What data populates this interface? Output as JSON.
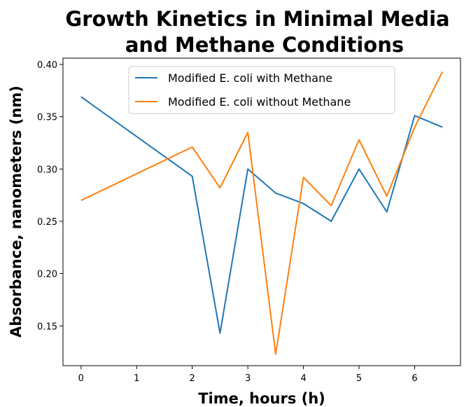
{
  "chart_data": {
    "type": "line",
    "title_lines": [
      "Growth Kinetics in Minimal Media",
      "and Methane Conditions"
    ],
    "xlabel": "Time, hours (h)",
    "ylabel": "Absorbance, nanometers (nm)",
    "xlim": [
      -0.325,
      6.825
    ],
    "ylim": [
      0.112,
      0.406
    ],
    "xticks": [
      0,
      1,
      2,
      3,
      4,
      5,
      6
    ],
    "xtick_labels": [
      "0",
      "1",
      "2",
      "3",
      "4",
      "5",
      "6"
    ],
    "yticks": [
      0.15,
      0.2,
      0.25,
      0.3,
      0.35,
      0.4
    ],
    "ytick_labels": [
      "0.15",
      "0.20",
      "0.25",
      "0.30",
      "0.35",
      "0.40"
    ],
    "grid": false,
    "legend_position": "top-center",
    "series": [
      {
        "name": "Modified E. coli with Methane",
        "color": "#1f77b4",
        "x": [
          0,
          2,
          2.5,
          3,
          3.5,
          4,
          4.5,
          5,
          5.5,
          6,
          6.5
        ],
        "y": [
          0.369,
          0.293,
          0.143,
          0.3,
          0.277,
          0.267,
          0.25,
          0.3,
          0.259,
          0.351,
          0.34
        ]
      },
      {
        "name": "Modified E. coli without Methane",
        "color": "#ff7f0e",
        "x": [
          0,
          2,
          2.5,
          3,
          3.5,
          4,
          4.5,
          5,
          5.5,
          6,
          6.5
        ],
        "y": [
          0.27,
          0.321,
          0.282,
          0.335,
          0.123,
          0.292,
          0.265,
          0.328,
          0.274,
          0.34,
          0.393
        ]
      }
    ]
  }
}
